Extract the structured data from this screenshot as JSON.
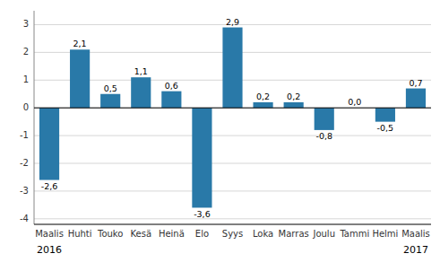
{
  "chart_data": {
    "type": "bar",
    "categories": [
      "Maalis",
      "Huhti",
      "Touko",
      "Kesä",
      "Heinä",
      "Elo",
      "Syys",
      "Loka",
      "Marras",
      "Joulu",
      "Tammi",
      "Helmi",
      "Maalis"
    ],
    "values": [
      -2.6,
      2.1,
      0.5,
      1.1,
      0.6,
      -3.6,
      2.9,
      0.2,
      0.2,
      -0.8,
      0.0,
      -0.5,
      0.7
    ],
    "value_labels": [
      "-2,6",
      "2,1",
      "0,5",
      "1,1",
      "0,6",
      "-3,6",
      "2,9",
      "0,2",
      "0,2",
      "-0,8",
      "0,0",
      "-0,5",
      "0,7"
    ],
    "data_labels": true,
    "color": "#2979a8",
    "ylim": [
      -4.2,
      3.5
    ],
    "yticks": [
      -4,
      -3,
      -2,
      -1,
      0,
      1,
      2,
      3
    ],
    "grid": true,
    "annotations": [
      {
        "text": "2016",
        "x": 0
      },
      {
        "text": "2017",
        "x": 12
      }
    ]
  }
}
